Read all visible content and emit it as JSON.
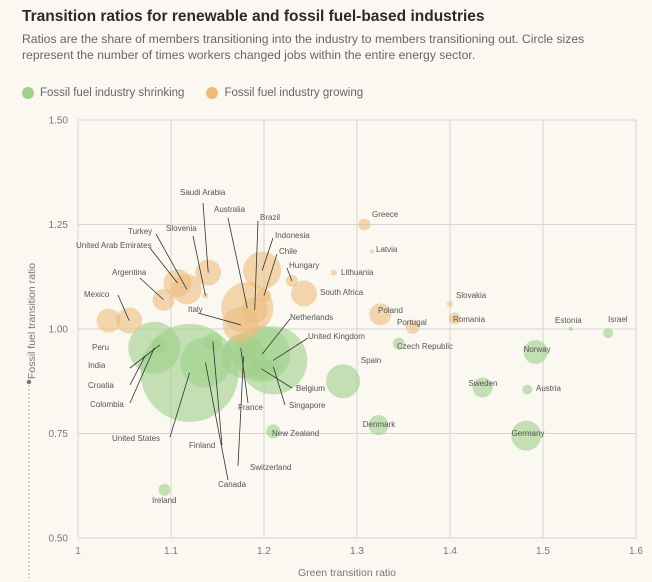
{
  "title": "Transition ratios for renewable and fossil fuel-based industries",
  "subtitle": "Ratios are the share of members transitioning into the industry to members transitioning out. Circle sizes represent the number of times workers changed jobs within the entire energy sector.",
  "legend": [
    {
      "label": "Fossil fuel industry shrinking",
      "color": "#9fd08d"
    },
    {
      "label": "Fossil fuel industry growing",
      "color": "#ecbb7c"
    }
  ],
  "colors": {
    "shrinking": "#9fd08d",
    "growing": "#ecbb7c",
    "grid": "#d5d5d5"
  },
  "chart_data": {
    "type": "scatter",
    "xlabel": "Green transition ratio",
    "ylabel": "Fossil fuel transition ratio",
    "xlim": [
      1.0,
      1.6
    ],
    "ylim": [
      0.5,
      1.5
    ],
    "xticks": [
      "1",
      "1.1",
      "1.2",
      "1.3",
      "1.4",
      "1.5",
      "1.6"
    ],
    "yticks": [
      "0.50",
      "0.75",
      "1.00",
      "1.25",
      "1.50"
    ],
    "grid": true,
    "legend_position": "top-left",
    "series": [
      {
        "name": "Fossil fuel industry shrinking",
        "points": [
          {
            "label": "United States",
            "x": 1.12,
            "y": 0.895,
            "size": 49
          },
          {
            "label": "Canada",
            "x": 1.137,
            "y": 0.92,
            "size": 25
          },
          {
            "label": "Switzerland",
            "x": 1.178,
            "y": 0.935,
            "size": 22
          },
          {
            "label": "Netherlands",
            "x": 1.198,
            "y": 0.94,
            "size": 28
          },
          {
            "label": "United Kingdom",
            "x": 1.21,
            "y": 0.925,
            "size": 34
          },
          {
            "label": "Colombia",
            "x": 1.082,
            "y": 0.955,
            "size": 26
          },
          {
            "label": "India",
            "x": 1.088,
            "y": 0.962,
            "size": 8
          },
          {
            "label": "Croatia",
            "x": 1.072,
            "y": 0.935,
            "size": 3
          },
          {
            "label": "Finland",
            "x": 1.145,
            "y": 0.97,
            "size": 9
          },
          {
            "label": "France",
            "x": 1.175,
            "y": 0.955,
            "size": 14
          },
          {
            "label": "Belgium",
            "x": 1.197,
            "y": 0.905,
            "size": 11
          },
          {
            "label": "Singapore",
            "x": 1.21,
            "y": 0.91,
            "size": 7
          },
          {
            "label": "Spain",
            "x": 1.285,
            "y": 0.875,
            "size": 17
          },
          {
            "label": "Czech Republic",
            "x": 1.345,
            "y": 0.965,
            "size": 6
          },
          {
            "label": "Denmark",
            "x": 1.323,
            "y": 0.77,
            "size": 10
          },
          {
            "label": "New Zealand",
            "x": 1.21,
            "y": 0.755,
            "size": 7
          },
          {
            "label": "Ireland",
            "x": 1.093,
            "y": 0.615,
            "size": 6
          },
          {
            "label": "Germany",
            "x": 1.482,
            "y": 0.745,
            "size": 15
          },
          {
            "label": "Sweden",
            "x": 1.435,
            "y": 0.86,
            "size": 10
          },
          {
            "label": "Austria",
            "x": 1.483,
            "y": 0.855,
            "size": 5
          },
          {
            "label": "Norway",
            "x": 1.492,
            "y": 0.945,
            "size": 12
          },
          {
            "label": "Estonia",
            "x": 1.53,
            "y": 1.0,
            "size": 2
          },
          {
            "label": "Israel",
            "x": 1.57,
            "y": 0.99,
            "size": 5
          }
        ]
      },
      {
        "name": "Fossil fuel industry growing",
        "points": [
          {
            "label": "Peru",
            "x": 1.033,
            "y": 1.02,
            "size": 12
          },
          {
            "label": "Mexico",
            "x": 1.055,
            "y": 1.02,
            "size": 13
          },
          {
            "label": "Argentina",
            "x": 1.092,
            "y": 1.07,
            "size": 11
          },
          {
            "label": "United Arab Emirates",
            "x": 1.107,
            "y": 1.11,
            "size": 14
          },
          {
            "label": "Turkey",
            "x": 1.117,
            "y": 1.095,
            "size": 15
          },
          {
            "label": "Saudi Arabia",
            "x": 1.14,
            "y": 1.135,
            "size": 13
          },
          {
            "label": "Slovenia",
            "x": 1.137,
            "y": 1.08,
            "size": 3
          },
          {
            "label": "Australia",
            "x": 1.182,
            "y": 1.05,
            "size": 26
          },
          {
            "label": "Italy",
            "x": 1.175,
            "y": 1.01,
            "size": 18
          },
          {
            "label": "Brazil",
            "x": 1.19,
            "y": 1.045,
            "size": 13
          },
          {
            "label": "Indonesia",
            "x": 1.198,
            "y": 1.14,
            "size": 19
          },
          {
            "label": "Chile",
            "x": 1.2,
            "y": 1.08,
            "size": 7
          },
          {
            "label": "Hungary",
            "x": 1.23,
            "y": 1.115,
            "size": 6
          },
          {
            "label": "South Africa",
            "x": 1.243,
            "y": 1.085,
            "size": 13
          },
          {
            "label": "Greece",
            "x": 1.308,
            "y": 1.25,
            "size": 6
          },
          {
            "label": "Latvia",
            "x": 1.316,
            "y": 1.185,
            "size": 2
          },
          {
            "label": "Lithuania",
            "x": 1.275,
            "y": 1.135,
            "size": 3
          },
          {
            "label": "Poland",
            "x": 1.325,
            "y": 1.035,
            "size": 11
          },
          {
            "label": "Portugal",
            "x": 1.36,
            "y": 1.005,
            "size": 7
          },
          {
            "label": "Slovakia",
            "x": 1.4,
            "y": 1.06,
            "size": 3
          },
          {
            "label": "Romania",
            "x": 1.405,
            "y": 1.025,
            "size": 6
          }
        ]
      }
    ]
  }
}
